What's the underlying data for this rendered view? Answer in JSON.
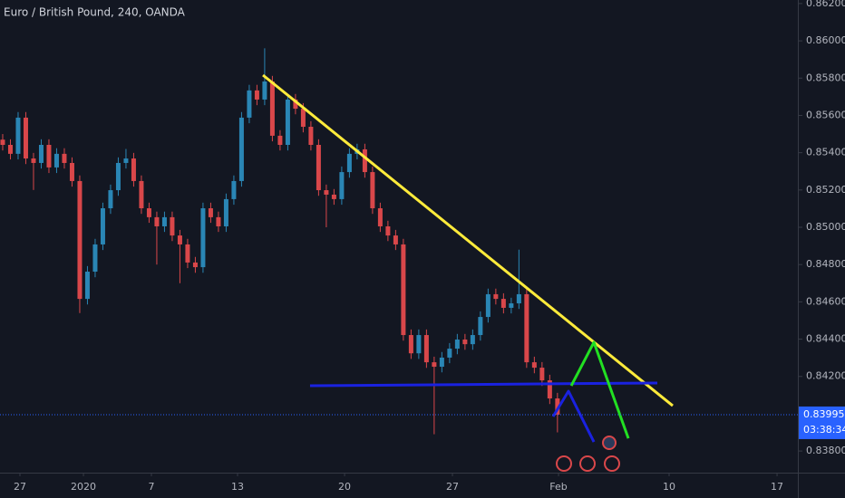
{
  "chart_data": {
    "type": "candlestick",
    "title": "Euro / British Pound, 240, OANDA",
    "up_color": "#2a86b5",
    "down_color": "#d9474a",
    "x": [
      0,
      1,
      2,
      3,
      4,
      5,
      6,
      7,
      8,
      9,
      10,
      11,
      12,
      13,
      14,
      15,
      16,
      17,
      18,
      19,
      20,
      21,
      22,
      23,
      24,
      25,
      26,
      27,
      28,
      29,
      30,
      31,
      32,
      33,
      34,
      35,
      36,
      37,
      38,
      39,
      40,
      41,
      42,
      43,
      44,
      45,
      46,
      47,
      48,
      49,
      50,
      51,
      52,
      53,
      54,
      55,
      56,
      57,
      58,
      59,
      60,
      61,
      62,
      63,
      64,
      65,
      66,
      67,
      68,
      69,
      70,
      71,
      72
    ],
    "open": [
      0.8547,
      0.85442,
      0.85394,
      0.85588,
      0.85369,
      0.85345,
      0.85442,
      0.85321,
      0.85394,
      0.85345,
      0.85248,
      0.84616,
      0.84762,
      0.84908,
      0.85102,
      0.85199,
      0.85345,
      0.85369,
      0.85248,
      0.85102,
      0.85054,
      0.85005,
      0.85054,
      0.84956,
      0.84908,
      0.84811,
      0.84786,
      0.85102,
      0.85054,
      0.85005,
      0.85151,
      0.85248,
      0.85588,
      0.85734,
      0.85685,
      0.85782,
      0.85491,
      0.85442,
      0.85685,
      0.85636,
      0.85539,
      0.85442,
      0.85199,
      0.85175,
      0.85151,
      0.85296,
      0.85394,
      0.85418,
      0.85296,
      0.85102,
      0.85005,
      0.84956,
      0.84908,
      0.84422,
      0.84324,
      0.84422,
      0.84276,
      0.84252,
      0.84301,
      0.84349,
      0.84398,
      0.84373,
      0.84422,
      0.84519,
      0.84641,
      0.84616,
      0.84568,
      0.84592,
      0.84641,
      0.84276,
      0.84247,
      0.84179,
      0.84082
    ],
    "high": [
      0.855,
      0.85472,
      0.85618,
      0.85618,
      0.85399,
      0.85472,
      0.85472,
      0.85424,
      0.85424,
      0.85375,
      0.85278,
      0.84792,
      0.84938,
      0.85132,
      0.85229,
      0.85375,
      0.8542,
      0.85399,
      0.85278,
      0.85132,
      0.85084,
      0.85084,
      0.85084,
      0.84986,
      0.84938,
      0.84841,
      0.85132,
      0.85132,
      0.85084,
      0.85181,
      0.85278,
      0.85618,
      0.85764,
      0.85764,
      0.8596,
      0.85812,
      0.85521,
      0.85715,
      0.85715,
      0.85666,
      0.85569,
      0.85472,
      0.85229,
      0.85205,
      0.85326,
      0.85424,
      0.85448,
      0.85448,
      0.85326,
      0.85132,
      0.85035,
      0.84986,
      0.84938,
      0.84452,
      0.84452,
      0.84452,
      0.84306,
      0.84331,
      0.84379,
      0.84428,
      0.84428,
      0.84452,
      0.84549,
      0.84671,
      0.84671,
      0.84646,
      0.84622,
      0.8488,
      0.84671,
      0.84306,
      0.84277,
      0.84209,
      0.84112
    ],
    "low": [
      0.85412,
      0.85364,
      0.85364,
      0.85339,
      0.852,
      0.85315,
      0.85291,
      0.85291,
      0.85315,
      0.85218,
      0.8454,
      0.84586,
      0.84732,
      0.84878,
      0.85072,
      0.85169,
      0.85315,
      0.85218,
      0.85072,
      0.85024,
      0.848,
      0.84975,
      0.84926,
      0.847,
      0.84781,
      0.84756,
      0.84756,
      0.85024,
      0.84975,
      0.84975,
      0.85121,
      0.85218,
      0.85558,
      0.85655,
      0.85655,
      0.85461,
      0.85412,
      0.85412,
      0.85606,
      0.85509,
      0.85412,
      0.85169,
      0.85,
      0.85121,
      0.85121,
      0.85266,
      0.85364,
      0.85266,
      0.85072,
      0.84975,
      0.84926,
      0.84878,
      0.84392,
      0.84294,
      0.84294,
      0.84246,
      0.8389,
      0.84222,
      0.84271,
      0.84319,
      0.84343,
      0.84343,
      0.84392,
      0.84489,
      0.84586,
      0.84538,
      0.84538,
      0.84562,
      0.84246,
      0.84217,
      0.84149,
      0.84052,
      0.839
    ],
    "close": [
      0.85442,
      0.85394,
      0.85588,
      0.85369,
      0.85345,
      0.85442,
      0.85321,
      0.85394,
      0.85345,
      0.85248,
      0.84616,
      0.84762,
      0.84908,
      0.85102,
      0.85199,
      0.85345,
      0.85369,
      0.85248,
      0.85102,
      0.85054,
      0.85005,
      0.85054,
      0.84956,
      0.84908,
      0.84811,
      0.84786,
      0.85102,
      0.85054,
      0.85005,
      0.85151,
      0.85248,
      0.85588,
      0.85734,
      0.85685,
      0.85782,
      0.85491,
      0.85442,
      0.85685,
      0.85636,
      0.85539,
      0.85442,
      0.85199,
      0.85175,
      0.85151,
      0.85296,
      0.85394,
      0.85418,
      0.85296,
      0.85102,
      0.85005,
      0.84956,
      0.84908,
      0.84422,
      0.84324,
      0.84422,
      0.84276,
      0.84252,
      0.84301,
      0.84349,
      0.84398,
      0.84373,
      0.84422,
      0.84519,
      0.84641,
      0.84616,
      0.84568,
      0.84592,
      0.84641,
      0.84276,
      0.84247,
      0.84179,
      0.84082,
      0.83995
    ],
    "xlim": [
      -0.35,
      103.2
    ],
    "xticks": [
      {
        "value": 2.24,
        "label": "27"
      },
      {
        "value": 10.48,
        "label": "2020"
      },
      {
        "value": 19.3,
        "label": "7"
      },
      {
        "value": 30.48,
        "label": "13"
      },
      {
        "value": 44.37,
        "label": "20"
      },
      {
        "value": 58.37,
        "label": "27"
      },
      {
        "value": 72.14,
        "label": "Feb"
      },
      {
        "value": 86.49,
        "label": "10"
      },
      {
        "value": 100.5,
        "label": "17"
      }
    ],
    "ylim": [
      0.83684,
      0.86219
    ],
    "yticks": [
      {
        "value": 0.862,
        "label": "0.86200"
      },
      {
        "value": 0.86,
        "label": "0.86000"
      },
      {
        "value": 0.858,
        "label": "0.85800"
      },
      {
        "value": 0.856,
        "label": "0.85600"
      },
      {
        "value": 0.854,
        "label": "0.85400"
      },
      {
        "value": 0.852,
        "label": "0.85200"
      },
      {
        "value": 0.85,
        "label": "0.85000"
      },
      {
        "value": 0.848,
        "label": "0.84800"
      },
      {
        "value": 0.846,
        "label": "0.84600"
      },
      {
        "value": 0.844,
        "label": "0.84400"
      },
      {
        "value": 0.842,
        "label": "0.84200"
      },
      {
        "value": 0.84,
        "label": "0.84000"
      },
      {
        "value": 0.838,
        "label": "0.83800"
      }
    ],
    "last_price": 0.83995,
    "last_price_color": "#2962ff",
    "countdown": "03:38:34",
    "drawings": [
      {
        "color": "#ffeb3b",
        "points": [
          [
            33.78,
            0.85816
          ],
          [
            86.96,
            0.84043
          ]
        ]
      },
      {
        "color": "#1a22e0",
        "points": [
          [
            39.89,
            0.8415
          ],
          [
            84.96,
            0.84165
          ]
        ]
      },
      {
        "color": "#22e022",
        "points": [
          [
            73.79,
            0.8415
          ],
          [
            76.73,
            0.84383
          ],
          [
            81.2,
            0.83868
          ]
        ]
      },
      {
        "color": "#1a22e0",
        "points": [
          [
            71.43,
            0.83985
          ],
          [
            73.43,
            0.84121
          ],
          [
            76.73,
            0.83849
          ]
        ]
      }
    ]
  }
}
